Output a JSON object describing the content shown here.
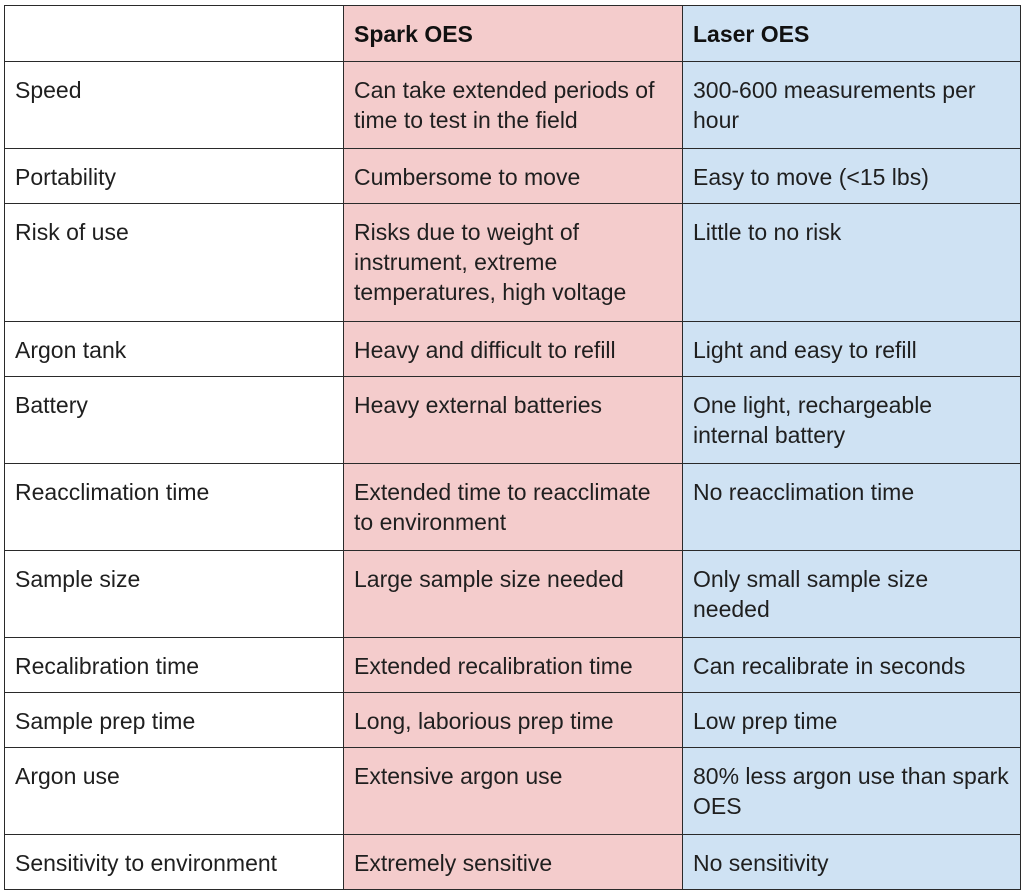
{
  "table": {
    "headers": [
      "",
      "Spark OES",
      "Laser OES"
    ],
    "rows": [
      {
        "feature": "Speed",
        "spark": "Can take extended periods of time to test in the field",
        "laser": "300-600 measurements per hour"
      },
      {
        "feature": "Portability",
        "spark": "Cumbersome to move",
        "laser": "Easy to move (<15 lbs)"
      },
      {
        "feature": "Risk of use",
        "spark": "Risks due to weight of instrument, extreme temperatures, high voltage",
        "laser": "Little to no risk"
      },
      {
        "feature": "Argon tank",
        "spark": "Heavy and difficult to refill",
        "laser": "Light and easy to refill"
      },
      {
        "feature": "Battery",
        "spark": "Heavy external batteries",
        "laser": "One light, rechargeable internal battery"
      },
      {
        "feature": "Reacclimation time",
        "spark": "Extended time to reacclimate to environment",
        "laser": "No reacclimation time"
      },
      {
        "feature": "Sample size",
        "spark": "Large sample size needed",
        "laser": "Only small sample size needed"
      },
      {
        "feature": "Recalibration time",
        "spark": "Extended recalibration time",
        "laser": "Can recalibrate in seconds"
      },
      {
        "feature": "Sample prep time",
        "spark": "Long, laborious prep time",
        "laser": "Low prep time"
      },
      {
        "feature": "Argon use",
        "spark": "Extensive argon use",
        "laser": "80% less argon use than spark OES"
      },
      {
        "feature": "Sensitivity to environment",
        "spark": "Extremely sensitive",
        "laser": "No sensitivity"
      }
    ]
  },
  "colors": {
    "spark_column": "#f4cccc",
    "laser_column": "#cfe2f3",
    "border": "#2a2a2a"
  }
}
